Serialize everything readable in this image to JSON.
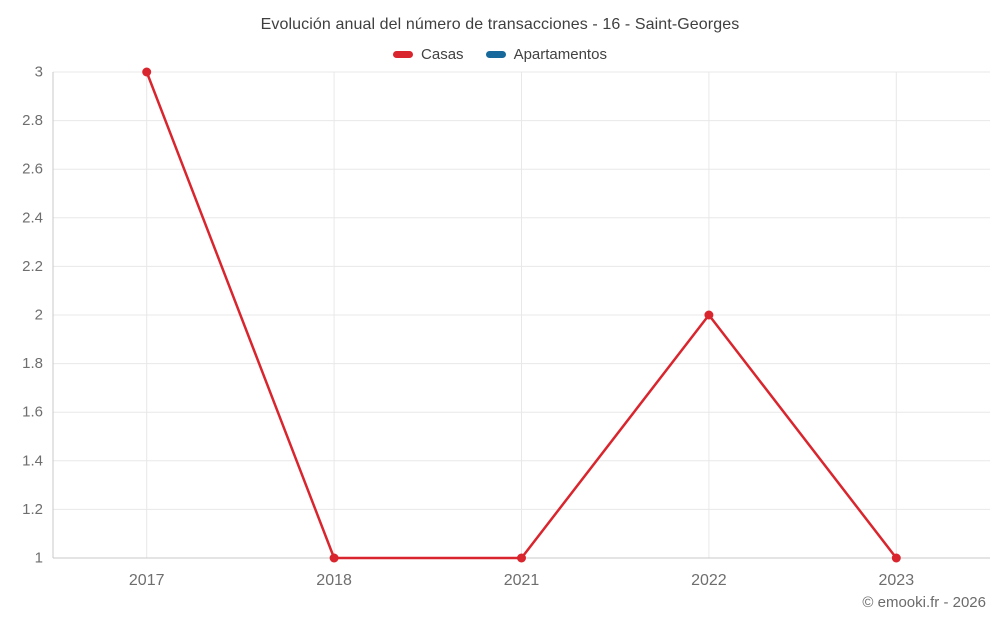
{
  "title": "Evolución anual del número de transacciones - 16 - Saint-Georges",
  "footer": "© emooki.fr - 2026",
  "legend": [
    {
      "label": "Casas",
      "color": "#d9252d"
    },
    {
      "label": "Apartamentos",
      "color": "#17699c"
    }
  ],
  "chart_data": {
    "type": "line",
    "title": "Evolución anual del número de transacciones - 16 - Saint-Georges",
    "categories": [
      "2017",
      "2018",
      "2021",
      "2022",
      "2023"
    ],
    "series": [
      {
        "name": "Casas",
        "color": "#d9252d",
        "values": [
          3,
          1,
          1,
          2,
          1
        ]
      },
      {
        "name": "Apartamentos",
        "color": "#17699c",
        "values": [
          null,
          null,
          null,
          null,
          null
        ]
      }
    ],
    "xlabel": "",
    "ylabel": "",
    "ylim": [
      1,
      3
    ],
    "yticks": [
      1,
      1.2,
      1.4,
      1.6,
      1.8,
      2,
      2.2,
      2.4,
      2.6,
      2.8,
      3
    ],
    "grid": true,
    "legend_position": "top"
  },
  "style": {
    "grid_color": "#e8e8e8",
    "axis_color": "#c9c9c9",
    "tick_label_color": "#6e6e6e",
    "background": "#ffffff"
  }
}
